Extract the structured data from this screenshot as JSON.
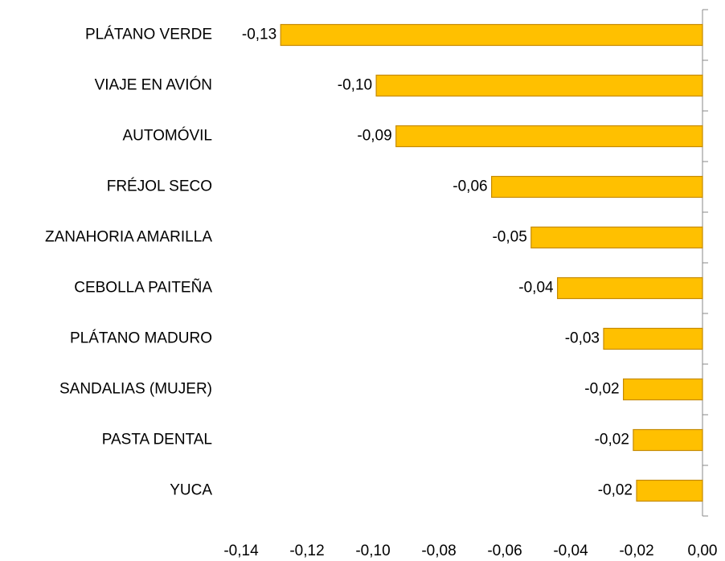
{
  "chart_data": {
    "type": "bar",
    "orientation": "horizontal",
    "categories": [
      "PLÁTANO VERDE",
      "VIAJE EN AVIÓN",
      "AUTOMÓVIL",
      "FRÉJOL SECO",
      "ZANAHORIA AMARILLA",
      "CEBOLLA PAITEÑA",
      "PLÁTANO MADURO",
      "SANDALIAS (MUJER)",
      "PASTA DENTAL",
      "YUCA"
    ],
    "values": [
      -0.128,
      -0.099,
      -0.093,
      -0.064,
      -0.052,
      -0.044,
      -0.03,
      -0.024,
      -0.021,
      -0.02
    ],
    "value_labels": [
      "-0,13",
      "-0,10",
      "-0,09",
      "-0,06",
      "-0,05",
      "-0,04",
      "-0,03",
      "-0,02",
      "-0,02",
      "-0,02"
    ],
    "color": "#FFC000",
    "xlim": [
      -0.14,
      0
    ],
    "xticks": [
      {
        "value": -0.14,
        "label": "-0,14"
      },
      {
        "value": -0.12,
        "label": "-0,12"
      },
      {
        "value": -0.1,
        "label": "-0,10"
      },
      {
        "value": -0.08,
        "label": "-0,08"
      },
      {
        "value": -0.06,
        "label": "-0,06"
      },
      {
        "value": -0.04,
        "label": "-0,04"
      },
      {
        "value": -0.02,
        "label": "-0,02"
      },
      {
        "value": 0,
        "label": "0,00"
      }
    ],
    "grid": false
  }
}
